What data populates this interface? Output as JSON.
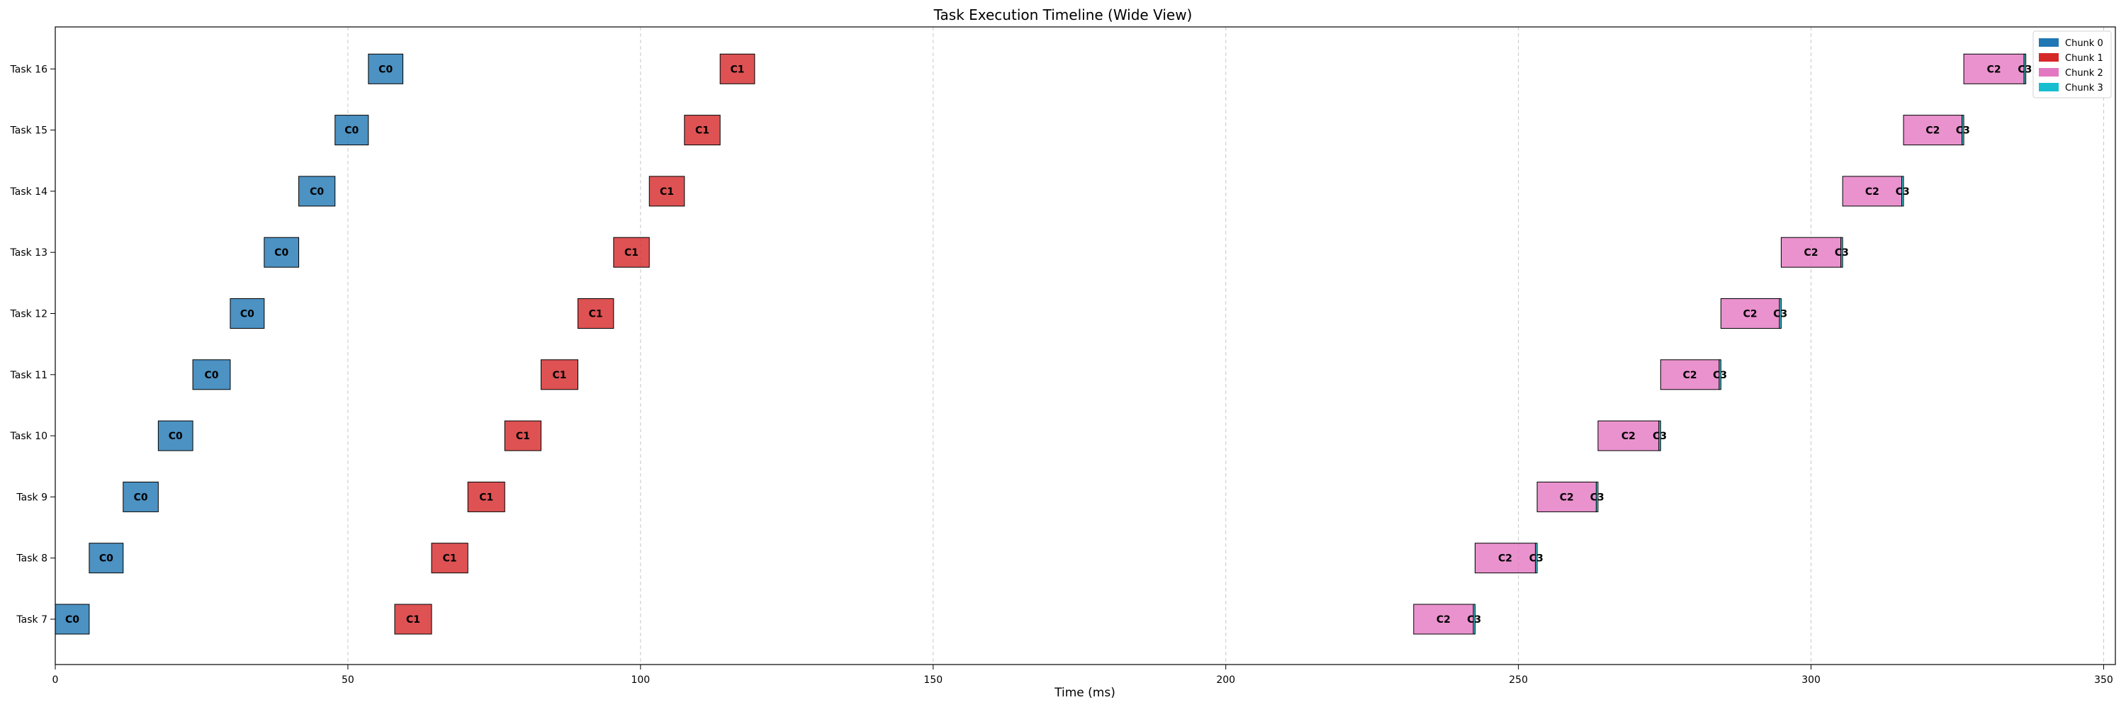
{
  "chart_data": {
    "type": "gantt",
    "title": "Task Execution Timeline (Wide View)",
    "xlabel": "Time (ms)",
    "ylabel": "",
    "xlim": [
      0,
      352
    ],
    "xticks": [
      0,
      50,
      100,
      150,
      200,
      250,
      300,
      350
    ],
    "grid": "x-dashed",
    "legend_position": "top-right",
    "legend": [
      {
        "name": "Chunk 0",
        "color": "#1f77b4"
      },
      {
        "name": "Chunk 1",
        "color": "#d62728"
      },
      {
        "name": "Chunk 2",
        "color": "#e377c2"
      },
      {
        "name": "Chunk 3",
        "color": "#17becf"
      }
    ],
    "chunk_labels": [
      "C0",
      "C1",
      "C2",
      "C3"
    ],
    "tasks": [
      {
        "name": "Task 7",
        "segments": [
          {
            "chunk": 0,
            "start": 0.0,
            "end": 5.8
          },
          {
            "chunk": 1,
            "start": 58.0,
            "end": 64.3
          },
          {
            "chunk": 2,
            "start": 232.1,
            "end": 242.3
          },
          {
            "chunk": 3,
            "start": 242.3,
            "end": 242.6
          }
        ]
      },
      {
        "name": "Task 8",
        "segments": [
          {
            "chunk": 0,
            "start": 5.8,
            "end": 11.6
          },
          {
            "chunk": 1,
            "start": 64.3,
            "end": 70.5
          },
          {
            "chunk": 2,
            "start": 242.6,
            "end": 252.9
          },
          {
            "chunk": 3,
            "start": 252.9,
            "end": 253.2
          }
        ]
      },
      {
        "name": "Task 9",
        "segments": [
          {
            "chunk": 0,
            "start": 11.6,
            "end": 17.6
          },
          {
            "chunk": 1,
            "start": 70.5,
            "end": 76.8
          },
          {
            "chunk": 2,
            "start": 253.2,
            "end": 263.3
          },
          {
            "chunk": 3,
            "start": 263.3,
            "end": 263.6
          }
        ]
      },
      {
        "name": "Task 10",
        "segments": [
          {
            "chunk": 0,
            "start": 17.6,
            "end": 23.5
          },
          {
            "chunk": 1,
            "start": 76.8,
            "end": 83.0
          },
          {
            "chunk": 2,
            "start": 263.6,
            "end": 274.0
          },
          {
            "chunk": 3,
            "start": 274.0,
            "end": 274.3
          }
        ]
      },
      {
        "name": "Task 11",
        "segments": [
          {
            "chunk": 0,
            "start": 23.5,
            "end": 29.9
          },
          {
            "chunk": 1,
            "start": 83.0,
            "end": 89.3
          },
          {
            "chunk": 2,
            "start": 274.3,
            "end": 284.3
          },
          {
            "chunk": 3,
            "start": 284.3,
            "end": 284.6
          }
        ]
      },
      {
        "name": "Task 12",
        "segments": [
          {
            "chunk": 0,
            "start": 29.9,
            "end": 35.7
          },
          {
            "chunk": 1,
            "start": 89.3,
            "end": 95.4
          },
          {
            "chunk": 2,
            "start": 284.6,
            "end": 294.6
          },
          {
            "chunk": 3,
            "start": 294.6,
            "end": 294.9
          }
        ]
      },
      {
        "name": "Task 13",
        "segments": [
          {
            "chunk": 0,
            "start": 35.7,
            "end": 41.6
          },
          {
            "chunk": 1,
            "start": 95.4,
            "end": 101.5
          },
          {
            "chunk": 2,
            "start": 294.9,
            "end": 305.1
          },
          {
            "chunk": 3,
            "start": 305.1,
            "end": 305.4
          }
        ]
      },
      {
        "name": "Task 14",
        "segments": [
          {
            "chunk": 0,
            "start": 41.6,
            "end": 47.8
          },
          {
            "chunk": 1,
            "start": 101.5,
            "end": 107.5
          },
          {
            "chunk": 2,
            "start": 305.4,
            "end": 315.5
          },
          {
            "chunk": 3,
            "start": 315.5,
            "end": 315.8
          }
        ]
      },
      {
        "name": "Task 15",
        "segments": [
          {
            "chunk": 0,
            "start": 47.8,
            "end": 53.5
          },
          {
            "chunk": 1,
            "start": 107.5,
            "end": 113.6
          },
          {
            "chunk": 2,
            "start": 315.8,
            "end": 325.8
          },
          {
            "chunk": 3,
            "start": 325.8,
            "end": 326.1
          }
        ]
      },
      {
        "name": "Task 16",
        "segments": [
          {
            "chunk": 0,
            "start": 53.5,
            "end": 59.4
          },
          {
            "chunk": 1,
            "start": 113.6,
            "end": 119.5
          },
          {
            "chunk": 2,
            "start": 326.1,
            "end": 336.4
          },
          {
            "chunk": 3,
            "start": 336.4,
            "end": 336.7
          }
        ]
      }
    ]
  }
}
